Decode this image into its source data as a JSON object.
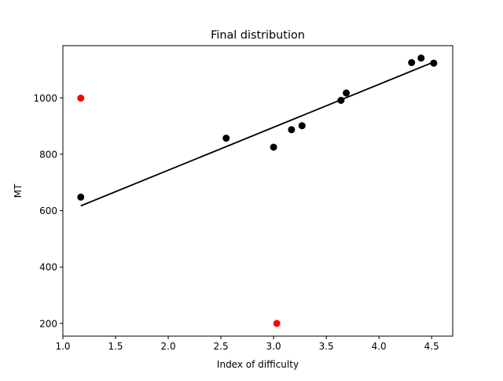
{
  "chart_data": {
    "type": "scatter",
    "title": "Final distribution",
    "xlabel": "Index of difficulty",
    "ylabel": "MT",
    "xlim": [
      1.0,
      4.7
    ],
    "ylim": [
      155,
      1185
    ],
    "xticks": [
      1.0,
      1.5,
      2.0,
      2.5,
      3.0,
      3.5,
      4.0,
      4.5
    ],
    "xtick_labels": [
      "1.0",
      "1.5",
      "2.0",
      "2.5",
      "3.0",
      "3.5",
      "4.0",
      "4.5"
    ],
    "yticks": [
      200,
      400,
      600,
      800,
      1000
    ],
    "ytick_labels": [
      "200",
      "400",
      "600",
      "800",
      "1000"
    ],
    "grid": false,
    "series": [
      {
        "color": "#000000",
        "points": [
          {
            "x": 1.17,
            "y": 648
          },
          {
            "x": 2.55,
            "y": 857
          },
          {
            "x": 3.0,
            "y": 825
          },
          {
            "x": 3.17,
            "y": 887
          },
          {
            "x": 3.27,
            "y": 901
          },
          {
            "x": 3.64,
            "y": 991
          },
          {
            "x": 3.69,
            "y": 1017
          },
          {
            "x": 4.31,
            "y": 1125
          },
          {
            "x": 4.4,
            "y": 1141
          },
          {
            "x": 4.52,
            "y": 1123
          }
        ]
      },
      {
        "color": "#ff0000",
        "points": [
          {
            "x": 1.17,
            "y": 999
          },
          {
            "x": 3.03,
            "y": 200
          }
        ]
      }
    ],
    "fit_line": {
      "color": "#000000",
      "from": {
        "x": 1.17,
        "y": 617
      },
      "to": {
        "x": 4.52,
        "y": 1127
      }
    }
  }
}
